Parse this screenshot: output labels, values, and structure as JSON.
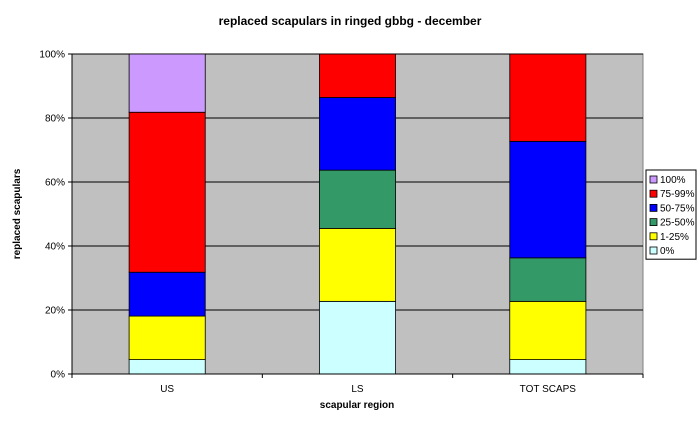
{
  "chart_data": {
    "type": "bar",
    "stacked": true,
    "percent_stacked": true,
    "title": "replaced scapulars in ringed gbbg - december",
    "xlabel": "scapular region",
    "ylabel": "replaced scapulars",
    "categories": [
      "US",
      "LS",
      "TOT SCAPS"
    ],
    "ylim": [
      0,
      100
    ],
    "yticks": [
      "0%",
      "20%",
      "40%",
      "60%",
      "80%",
      "100%"
    ],
    "grid": true,
    "legend_position": "right",
    "plot_background": "#c0c0c0",
    "series": [
      {
        "name": "0%",
        "color": "#ccffff",
        "values": [
          4.5,
          22.7,
          4.5
        ]
      },
      {
        "name": "1-25%",
        "color": "#ffff00",
        "values": [
          13.6,
          22.8,
          18.2
        ]
      },
      {
        "name": "25-50%",
        "color": "#339966",
        "values": [
          0,
          18.2,
          13.6
        ]
      },
      {
        "name": "50-75%",
        "color": "#0000ff",
        "values": [
          13.7,
          22.7,
          36.4
        ]
      },
      {
        "name": "75-99%",
        "color": "#ff0000",
        "values": [
          50.0,
          13.6,
          27.3
        ]
      },
      {
        "name": "100%",
        "color": "#cc99ff",
        "values": [
          18.2,
          0,
          0
        ]
      }
    ]
  }
}
